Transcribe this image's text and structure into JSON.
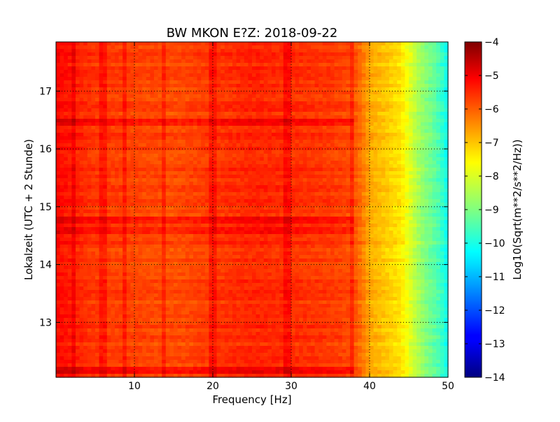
{
  "chart_data": {
    "type": "heatmap",
    "title": "BW MKON E?Z: 2018-09-22",
    "xlabel": "Frequency [Hz]",
    "ylabel": "Lokalzeit (UTC + 2 Stunde)",
    "xlim": [
      0,
      50
    ],
    "ylim": [
      17.85,
      12.05
    ],
    "x_ticks": [
      10,
      20,
      30,
      40,
      50
    ],
    "y_ticks": [
      13,
      14,
      15,
      16,
      17
    ],
    "grid": true,
    "colormap": "jet",
    "colorbar": {
      "label": "Log10(Sqrt(m**2/s**2/Hz))",
      "min": -14,
      "max": -4,
      "ticks": [
        -4,
        -5,
        -6,
        -7,
        -8,
        -9,
        -10,
        -11,
        -12,
        -13,
        -14
      ]
    },
    "frequency_profile": {
      "x": [
        0,
        2,
        5,
        10,
        15,
        20,
        25,
        30,
        35,
        38,
        39,
        40,
        42,
        44,
        45,
        46,
        47,
        48,
        49,
        50
      ],
      "values": [
        -5.3,
        -5.5,
        -5.8,
        -5.9,
        -6.0,
        -5.8,
        -5.6,
        -5.7,
        -5.8,
        -6.0,
        -6.4,
        -6.9,
        -7.2,
        -7.5,
        -8.0,
        -8.5,
        -8.9,
        -9.2,
        -9.6,
        -10.2
      ]
    },
    "strong_bands": [
      {
        "time": 12.16,
        "value": -5.0
      },
      {
        "time": 14.6,
        "value": -5.4
      },
      {
        "time": 14.78,
        "value": -5.5
      },
      {
        "time": 16.45,
        "value": -5.5
      }
    ],
    "strong_lines_hz": [
      2.3,
      6.0,
      8.6,
      13.8,
      20.0,
      29.5,
      37.8
    ]
  }
}
